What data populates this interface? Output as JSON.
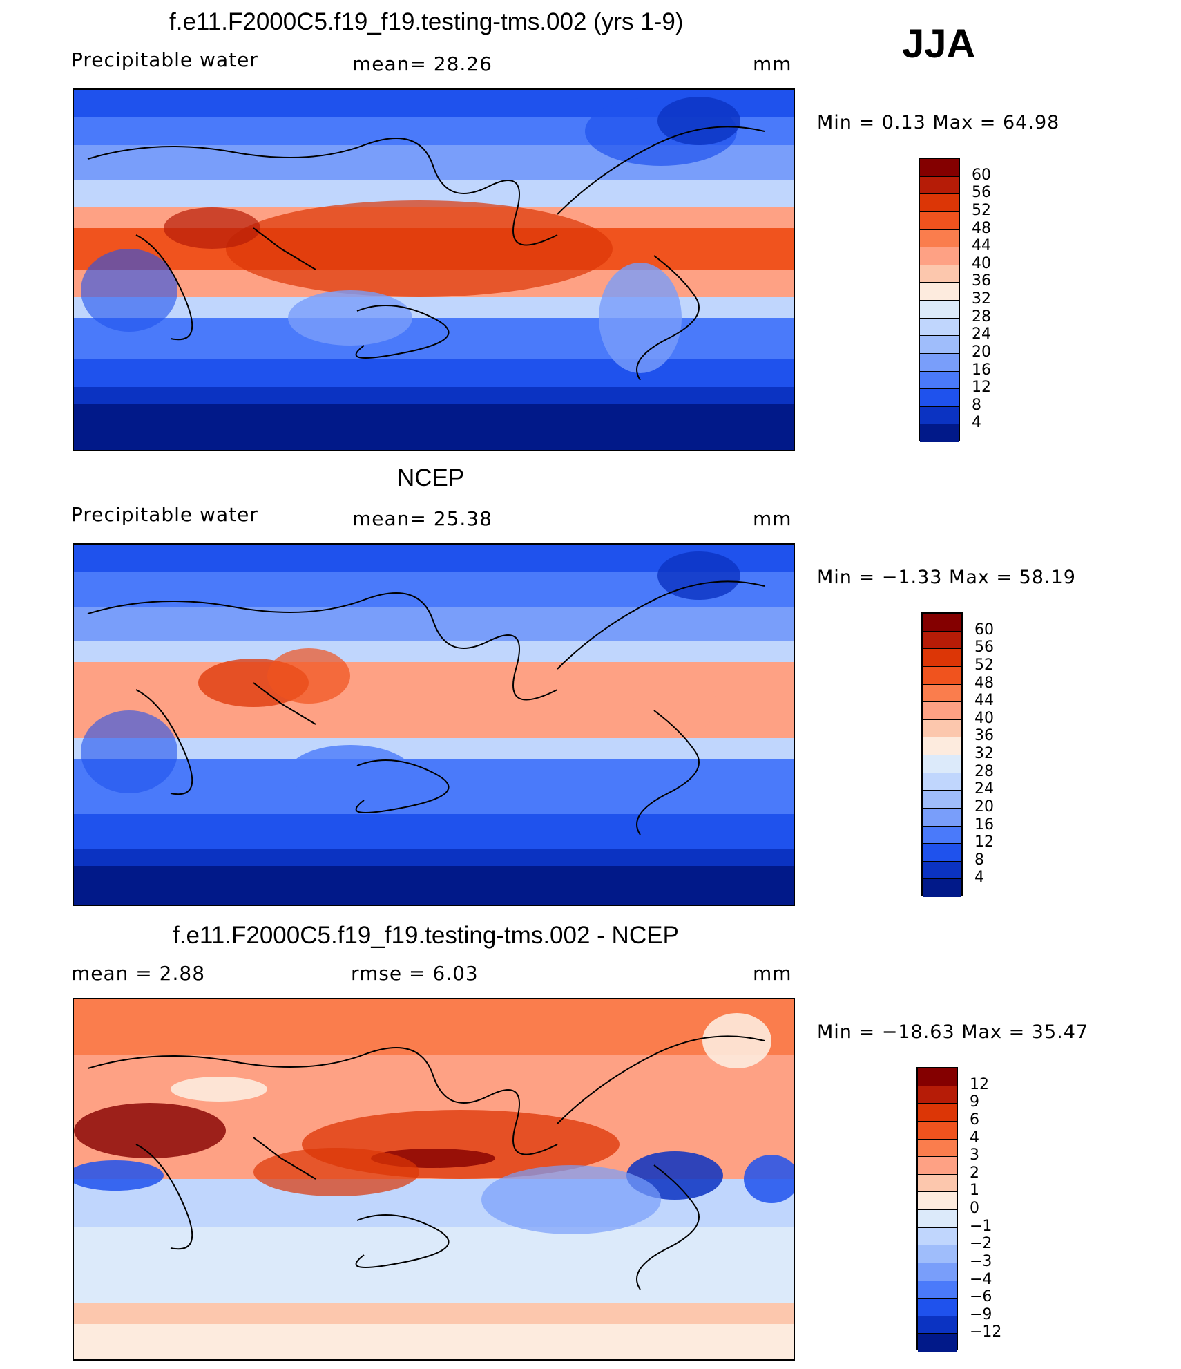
{
  "season": "JJA",
  "panels": [
    {
      "title": "f.e11.F2000C5.f19_f19.testing-tms.002 (yrs 1-9)",
      "variable": "Precipitable  water",
      "stat": "mean=   28.26",
      "units": "mm",
      "minmax": "Min  =     0.13  Max  =    64.98",
      "colorbar": {
        "labels": [
          "60",
          "56",
          "52",
          "48",
          "44",
          "40",
          "36",
          "32",
          "28",
          "24",
          "20",
          "16",
          "12",
          "8",
          "4"
        ],
        "colors": [
          "#840000",
          "#b61c07",
          "#dc3606",
          "#f0531e",
          "#fa7d4d",
          "#fea184",
          "#fcc7ad",
          "#fdebde",
          "#dceafa",
          "#c0d6fd",
          "#9fbdfb",
          "#799efa",
          "#4a7afa",
          "#1f52ed",
          "#0b33c2",
          "#011989"
        ]
      }
    },
    {
      "title": "NCEP",
      "variable": "Precipitable  water",
      "stat": "mean=   25.38",
      "units": "mm",
      "minmax": "Min  =   −1.33  Max  =    58.19",
      "colorbar": {
        "labels": [
          "60",
          "56",
          "52",
          "48",
          "44",
          "40",
          "36",
          "32",
          "28",
          "24",
          "20",
          "16",
          "12",
          "8",
          "4"
        ],
        "colors": [
          "#840000",
          "#b61c07",
          "#dc3606",
          "#f0531e",
          "#fa7d4d",
          "#fea184",
          "#fcc7ad",
          "#fdebde",
          "#dceafa",
          "#c0d6fd",
          "#9fbdfb",
          "#799efa",
          "#4a7afa",
          "#1f52ed",
          "#0b33c2",
          "#011989"
        ]
      }
    },
    {
      "title": "f.e11.F2000C5.f19_f19.testing-tms.002 - NCEP",
      "stat_mean": "mean  =      2.88",
      "stat_rmse": "rmse  =      6.03",
      "units": "mm",
      "minmax": "Min  =  −18.63  Max  =    35.47",
      "colorbar": {
        "labels": [
          "12",
          "9",
          "6",
          "4",
          "3",
          "2",
          "1",
          "0",
          "−1",
          "−2",
          "−3",
          "−4",
          "−6",
          "−9",
          "−12"
        ],
        "colors": [
          "#840000",
          "#b61c07",
          "#dc3606",
          "#f0531e",
          "#fa7d4d",
          "#fea184",
          "#fcc7ad",
          "#fdebde",
          "#dceafa",
          "#c0d6fd",
          "#9fbdfb",
          "#799efa",
          "#4a7afa",
          "#1f52ed",
          "#0b33c2",
          "#011989"
        ]
      }
    }
  ],
  "chart_data": [
    {
      "type": "heatmap",
      "title": "f.e11.F2000C5.f19_f19.testing-tms.002 (yrs 1-9)",
      "variable": "Precipitable water",
      "units": "mm",
      "mean": 28.26,
      "min": 0.13,
      "max": 64.98,
      "levels": [
        4,
        8,
        12,
        16,
        20,
        24,
        28,
        32,
        36,
        40,
        44,
        48,
        52,
        56,
        60
      ]
    },
    {
      "type": "heatmap",
      "title": "NCEP",
      "variable": "Precipitable water",
      "units": "mm",
      "mean": 25.38,
      "min": -1.33,
      "max": 58.19,
      "levels": [
        4,
        8,
        12,
        16,
        20,
        24,
        28,
        32,
        36,
        40,
        44,
        48,
        52,
        56,
        60
      ]
    },
    {
      "type": "heatmap",
      "title": "f.e11.F2000C5.f19_f19.testing-tms.002 - NCEP",
      "units": "mm",
      "mean": 2.88,
      "rmse": 6.03,
      "min": -18.63,
      "max": 35.47,
      "levels": [
        -12,
        -9,
        -6,
        -4,
        -3,
        -2,
        -1,
        0,
        1,
        2,
        3,
        4,
        6,
        9,
        12
      ]
    }
  ]
}
